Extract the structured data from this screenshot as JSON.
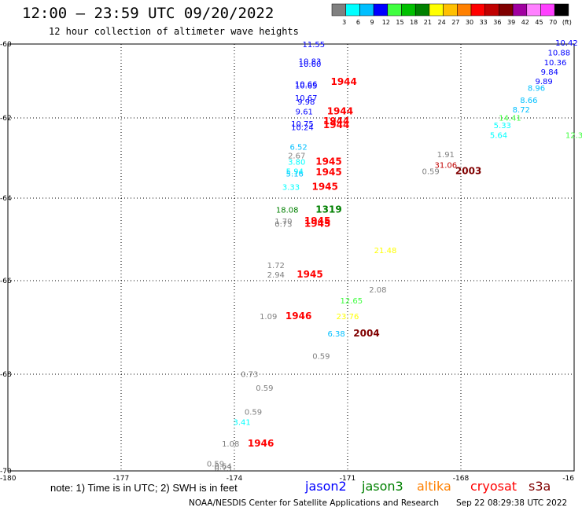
{
  "header": {
    "title": "12:00 – 23:59 UTC 09/20/2022",
    "subtitle": "12 hour collection of altimeter wave heights"
  },
  "legend": {
    "colors": [
      "#808080",
      "#00ffff",
      "#00bfff",
      "#0000ff",
      "#40ff40",
      "#00c000",
      "#008000",
      "#ffff00",
      "#ffc000",
      "#ff8000",
      "#ff0000",
      "#c00000",
      "#800000",
      "#a000a0",
      "#ff80ff",
      "#ff40ff",
      "#000000"
    ],
    "labels": [
      "3",
      "6",
      "9",
      "12",
      "15",
      "18",
      "21",
      "24",
      "27",
      "30",
      "33",
      "36",
      "39",
      "42",
      "45",
      "70",
      "(ft)"
    ]
  },
  "note": "note: 1) Time is in UTC; 2) SWH is in feet",
  "missions": [
    {
      "name": "jason2",
      "color": "#0000ff"
    },
    {
      "name": "jason3",
      "color": "#008000"
    },
    {
      "name": "altika",
      "color": "#ff8000"
    },
    {
      "name": "cryosat",
      "color": "#ff0000"
    },
    {
      "name": "s3a",
      "color": "#800000"
    }
  ],
  "footer": {
    "credit": "NOAA/NESDIS Center for Satellite Applications and Research",
    "timestamp": "Sep 22 08:29:38 UTC 2022"
  },
  "chart_data": {
    "type": "scatter",
    "xlabel": "",
    "ylabel": "",
    "xlim": [
      -180,
      -165
    ],
    "ylim": [
      -70,
      -60
    ],
    "x_ticks": [
      "-180",
      "-177",
      "-174",
      "-171",
      "-168",
      "-16"
    ],
    "y_ticks": [
      "-60",
      "-62",
      "-64",
      "-66",
      "-68",
      "-70"
    ],
    "grid": true,
    "wave_heights": [
      {
        "x": -171.9,
        "y": -60.07,
        "label": "11.55",
        "color": "#0000ff"
      },
      {
        "x": -172.0,
        "y": -60.47,
        "label": "10.83",
        "color": "#0000ff"
      },
      {
        "x": -172.0,
        "y": -60.53,
        "label": "10.60",
        "color": "#0000ff"
      },
      {
        "x": -172.1,
        "y": -61.0,
        "label": "10.66",
        "color": "#0000ff"
      },
      {
        "x": -172.1,
        "y": -61.04,
        "label": "10.65",
        "color": "#0000ff"
      },
      {
        "x": -172.1,
        "y": -61.33,
        "label": "10.67",
        "color": "#0000ff"
      },
      {
        "x": -172.1,
        "y": -61.42,
        "label": "9.98",
        "color": "#0000ff"
      },
      {
        "x": -172.15,
        "y": -61.65,
        "label": "9.61",
        "color": "#0000ff"
      },
      {
        "x": -172.2,
        "y": -61.93,
        "label": "10.75",
        "color": "#0000ff"
      },
      {
        "x": -172.2,
        "y": -62.02,
        "label": "10.24",
        "color": "#0000ff"
      },
      {
        "x": -171.1,
        "y": -60.96,
        "label": "1944",
        "color": "#ff0000"
      },
      {
        "x": -171.2,
        "y": -61.65,
        "label": "1944",
        "color": "#ff0000"
      },
      {
        "x": -171.3,
        "y": -61.88,
        "label": "1944",
        "color": "#ff0000"
      },
      {
        "x": -171.3,
        "y": -61.97,
        "label": "1944",
        "color": "#ff0000"
      },
      {
        "x": -172.3,
        "y": -62.48,
        "label": "6.52",
        "color": "#00bfff"
      },
      {
        "x": -172.35,
        "y": -62.68,
        "label": "2.67",
        "color": "#808080"
      },
      {
        "x": -172.35,
        "y": -62.83,
        "label": "3.80",
        "color": "#00ffff"
      },
      {
        "x": -172.4,
        "y": -63.05,
        "label": "5.94",
        "color": "#00ffff"
      },
      {
        "x": -172.4,
        "y": -63.1,
        "label": "5.16",
        "color": "#00bfff"
      },
      {
        "x": -172.5,
        "y": -63.42,
        "label": "3.33",
        "color": "#00ffff"
      },
      {
        "x": -171.5,
        "y": -62.83,
        "label": "1945",
        "color": "#ff0000"
      },
      {
        "x": -171.5,
        "y": -63.08,
        "label": "1945",
        "color": "#ff0000"
      },
      {
        "x": -171.6,
        "y": -63.42,
        "label": "1945",
        "color": "#ff0000"
      },
      {
        "x": -172.6,
        "y": -63.95,
        "label": "18.08",
        "color": "#008000"
      },
      {
        "x": -171.5,
        "y": -63.95,
        "label": "1319",
        "color": "#008000"
      },
      {
        "x": -172.7,
        "y": -64.22,
        "label": "1.70",
        "color": "#808080"
      },
      {
        "x": -172.7,
        "y": -64.28,
        "label": "0.73",
        "color": "#808080"
      },
      {
        "x": -171.8,
        "y": -64.22,
        "label": "1945",
        "color": "#ff0000"
      },
      {
        "x": -171.8,
        "y": -64.28,
        "label": "1945",
        "color": "#ff0000"
      },
      {
        "x": -170.0,
        "y": -64.9,
        "label": "21.48",
        "color": "#ffff00"
      },
      {
        "x": -172.9,
        "y": -65.25,
        "label": "1.72",
        "color": "#808080"
      },
      {
        "x": -172.9,
        "y": -65.47,
        "label": "2.94",
        "color": "#808080"
      },
      {
        "x": -172.0,
        "y": -65.47,
        "label": "1945",
        "color": "#ff0000"
      },
      {
        "x": -170.2,
        "y": -65.82,
        "label": "2.08",
        "color": "#808080"
      },
      {
        "x": -170.9,
        "y": -66.08,
        "label": "12.65",
        "color": "#40ff40"
      },
      {
        "x": -173.1,
        "y": -66.45,
        "label": "1.09",
        "color": "#808080"
      },
      {
        "x": -172.3,
        "y": -66.45,
        "label": "1946",
        "color": "#ff0000"
      },
      {
        "x": -171.0,
        "y": -66.45,
        "label": "23.76",
        "color": "#ffff00"
      },
      {
        "x": -171.3,
        "y": -66.85,
        "label": "6.38",
        "color": "#00bfff"
      },
      {
        "x": -170.5,
        "y": -66.85,
        "label": "2004",
        "color": "#800000"
      },
      {
        "x": -171.7,
        "y": -67.38,
        "label": "0.59",
        "color": "#808080"
      },
      {
        "x": -173.6,
        "y": -67.8,
        "label": "0.73",
        "color": "#808080"
      },
      {
        "x": -173.2,
        "y": -68.12,
        "label": "0.59",
        "color": "#808080"
      },
      {
        "x": -173.5,
        "y": -68.68,
        "label": "0.59",
        "color": "#808080"
      },
      {
        "x": -173.8,
        "y": -68.92,
        "label": "3.41",
        "color": "#00ffff"
      },
      {
        "x": -174.1,
        "y": -69.43,
        "label": "1.08",
        "color": "#808080"
      },
      {
        "x": -173.3,
        "y": -69.43,
        "label": "1946",
        "color": "#ff0000"
      },
      {
        "x": -174.5,
        "y": -69.9,
        "label": "0.59",
        "color": "#808080"
      },
      {
        "x": -174.3,
        "y": -69.95,
        "label": "0.64",
        "color": "#808080"
      },
      {
        "x": -174.3,
        "y": -70.0,
        "label": "0.73",
        "color": "#808080"
      },
      {
        "x": -168.8,
        "y": -63.05,
        "label": "0.59",
        "color": "#808080"
      },
      {
        "x": -168.4,
        "y": -62.65,
        "label": "1.91",
        "color": "#808080"
      },
      {
        "x": -168.4,
        "y": -62.9,
        "label": "31.06",
        "color": "#c00000"
      },
      {
        "x": -167.8,
        "y": -63.05,
        "label": "2003",
        "color": "#800000"
      },
      {
        "x": -165.2,
        "y": -60.04,
        "label": "10.42",
        "color": "#0000ff"
      },
      {
        "x": -165.4,
        "y": -60.27,
        "label": "10.88",
        "color": "#0000ff"
      },
      {
        "x": -165.5,
        "y": -60.5,
        "label": "10.36",
        "color": "#0000ff"
      },
      {
        "x": -165.65,
        "y": -60.72,
        "label": "9.84",
        "color": "#0000ff"
      },
      {
        "x": -165.8,
        "y": -60.94,
        "label": "9.89",
        "color": "#0000ff"
      },
      {
        "x": -166.0,
        "y": -61.1,
        "label": "8.96",
        "color": "#00bfff"
      },
      {
        "x": -166.2,
        "y": -61.38,
        "label": "8.66",
        "color": "#00bfff"
      },
      {
        "x": -166.4,
        "y": -61.6,
        "label": "8.72",
        "color": "#00bfff"
      },
      {
        "x": -166.7,
        "y": -61.8,
        "label": "14.41",
        "color": "#40ff40"
      },
      {
        "x": -166.9,
        "y": -61.97,
        "label": "5.33",
        "color": "#00ffff"
      },
      {
        "x": -167.0,
        "y": -62.2,
        "label": "5.64",
        "color": "#00ffff"
      },
      {
        "x": -165.0,
        "y": -62.2,
        "label": "12.3",
        "color": "#40ff40"
      }
    ]
  }
}
